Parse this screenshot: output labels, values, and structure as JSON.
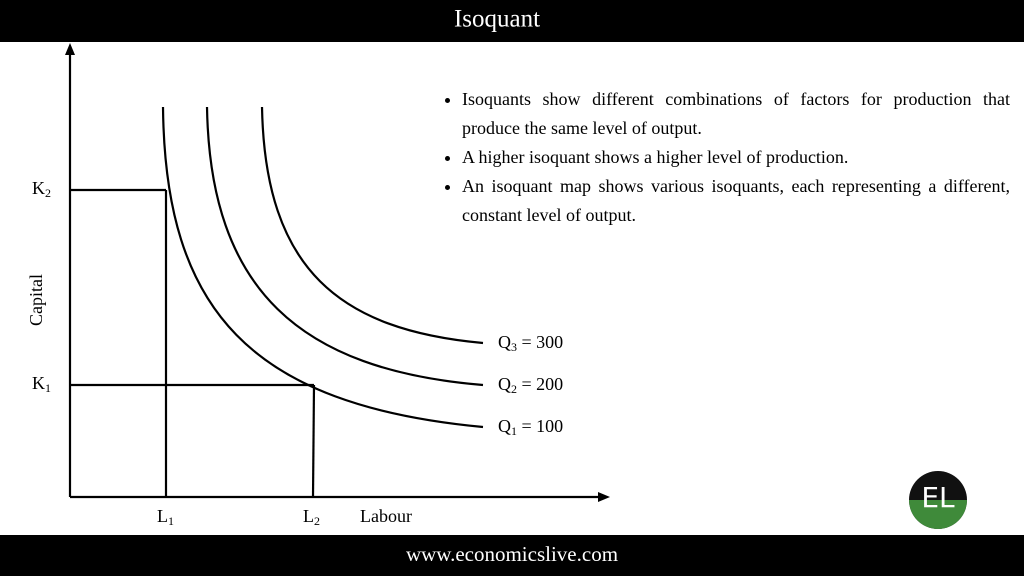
{
  "header": {
    "title": "Isoquant"
  },
  "bullets": [
    "Isoquants show different combinations of factors for production that produce the same level of output.",
    "A higher isoquant shows a higher level of production.",
    "An isoquant map shows various isoquants, each representing a different, constant level of output."
  ],
  "axes": {
    "y_label": "Capital",
    "x_label": "Labour"
  },
  "y_marks": [
    {
      "main": "K",
      "sub": "2"
    },
    {
      "main": "K",
      "sub": "1"
    }
  ],
  "x_marks": [
    {
      "main": "L",
      "sub": "1"
    },
    {
      "main": "L",
      "sub": "2"
    }
  ],
  "curves": [
    {
      "main": "Q",
      "sub": "3",
      "rest": " = 300"
    },
    {
      "main": "Q",
      "sub": "2",
      "rest": " = 200"
    },
    {
      "main": "Q",
      "sub": "1",
      "rest": " = 100"
    }
  ],
  "logo": "EL",
  "footer": {
    "url": "www.economicslive.com"
  }
}
